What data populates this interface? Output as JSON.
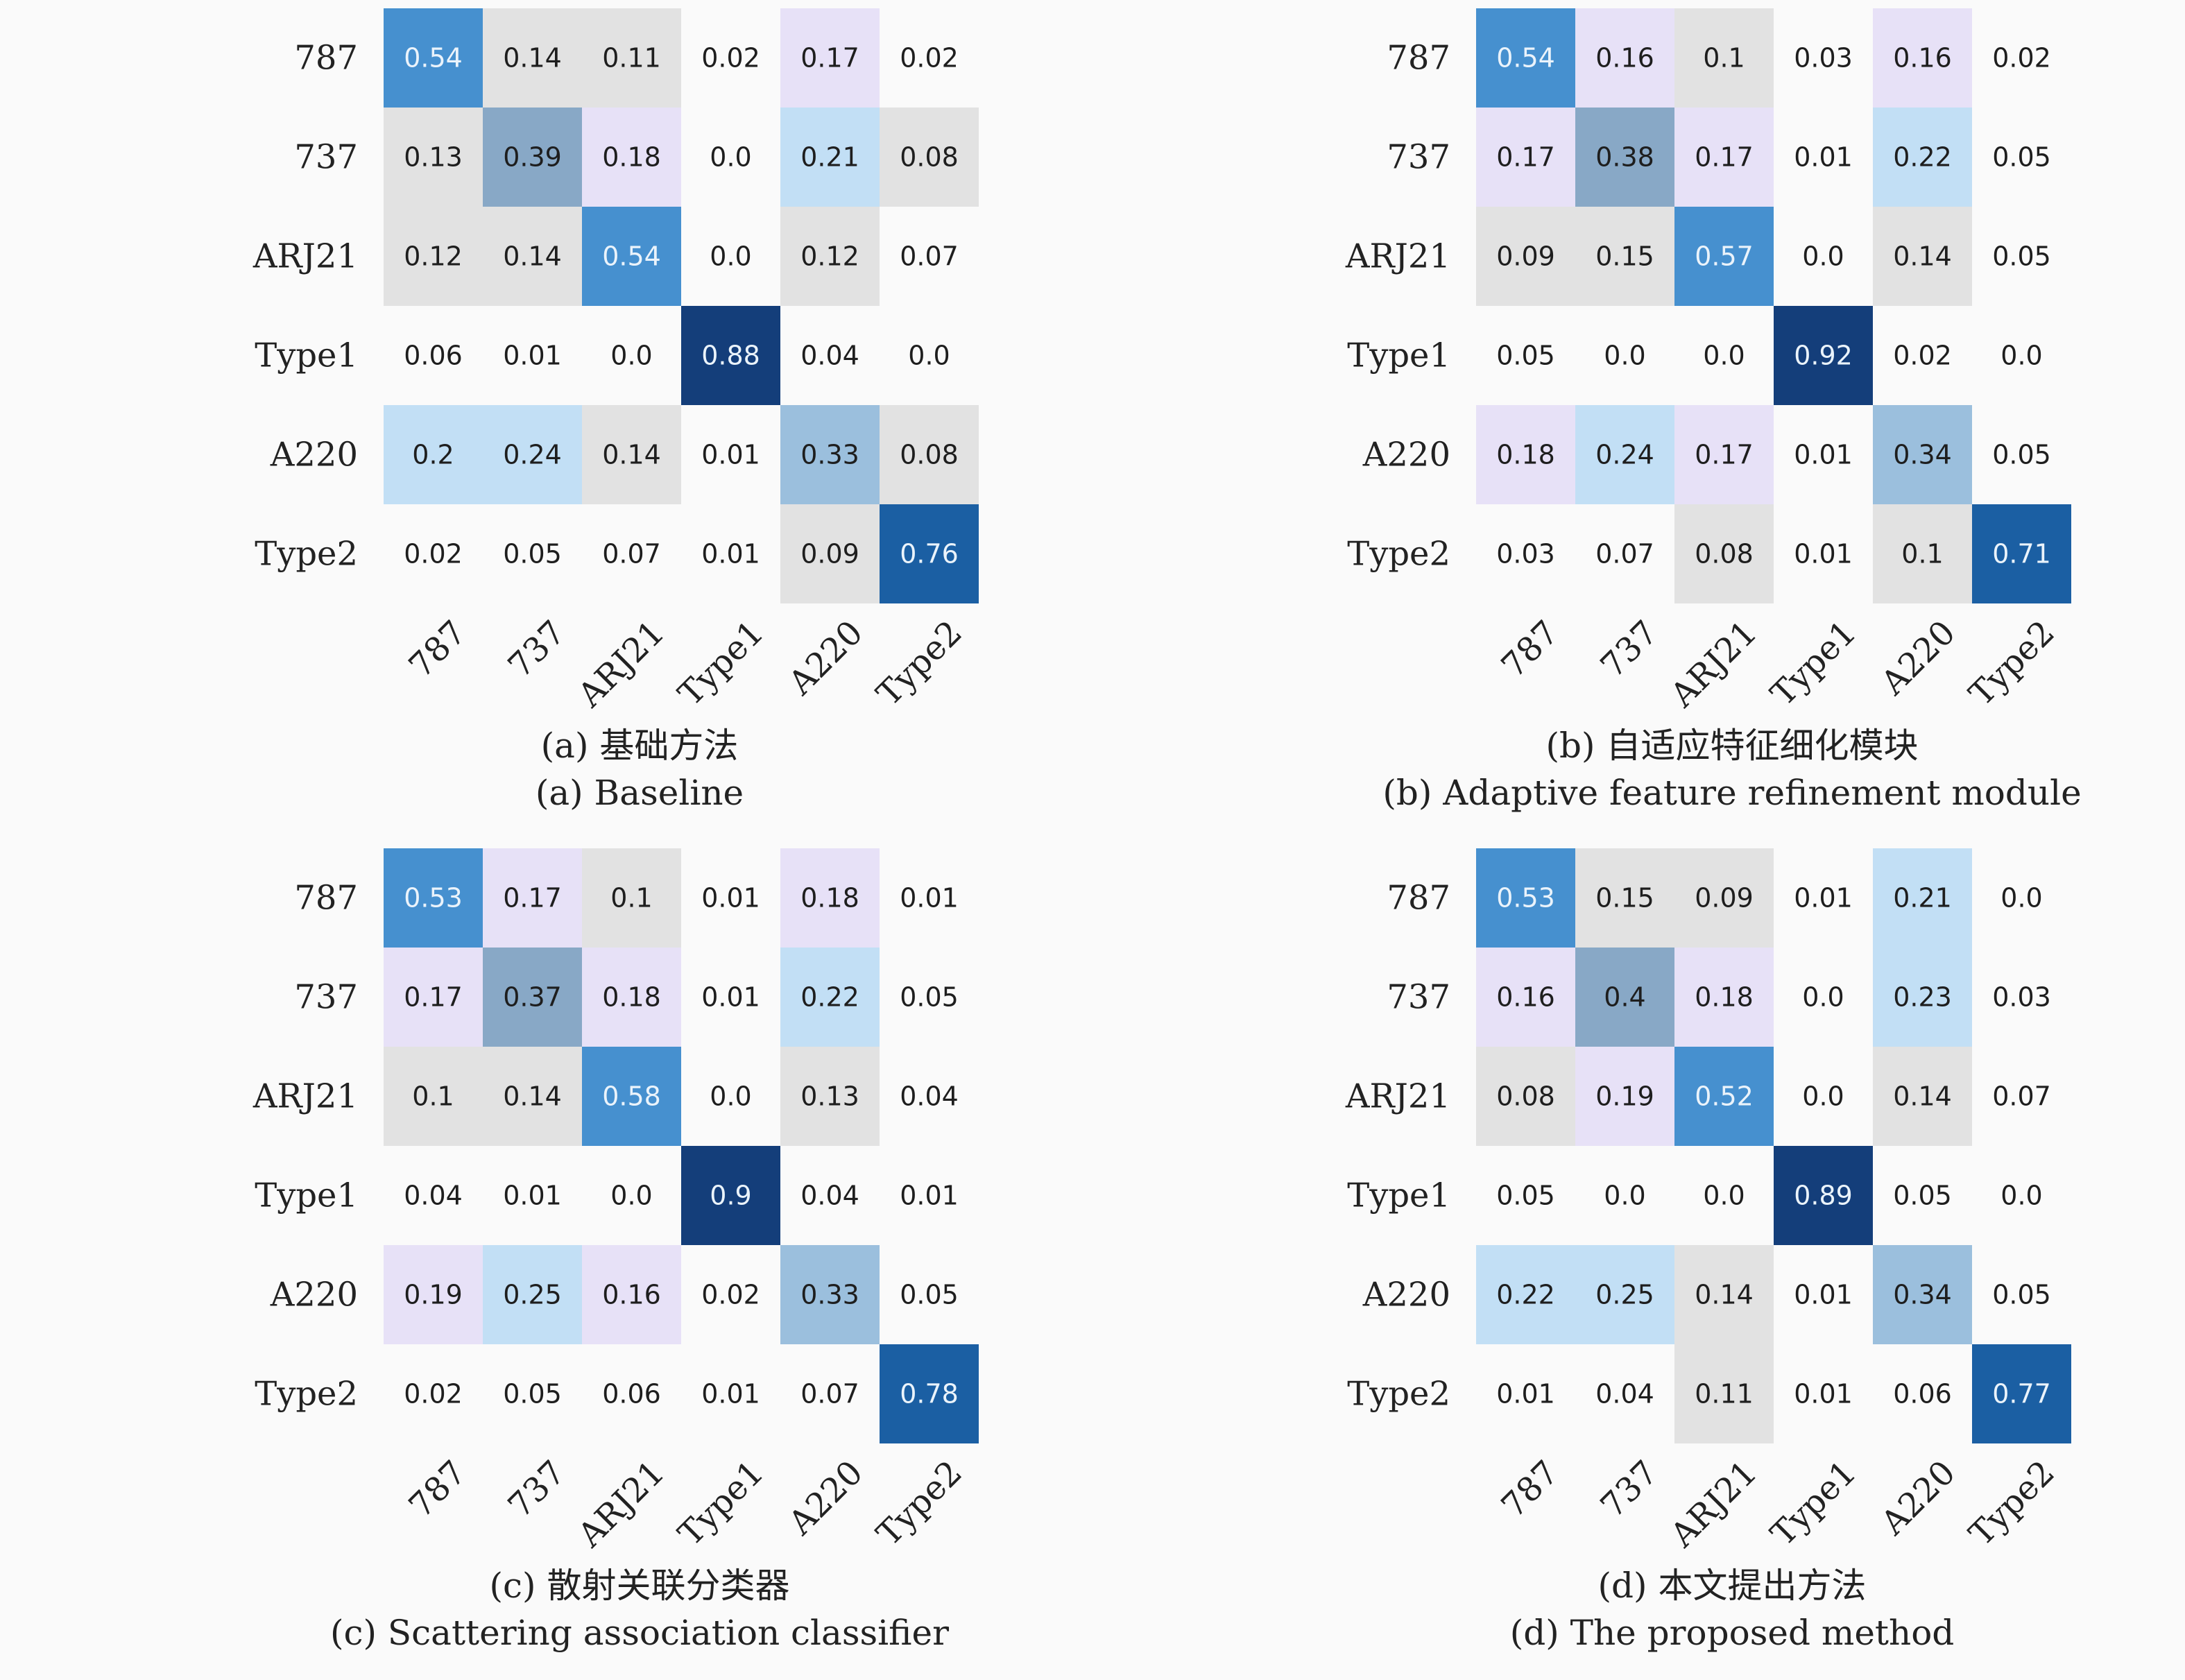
{
  "colors": {
    "scale": [
      "#e2e2e2",
      "#e7e1f7",
      "#c2dff5",
      "#9bbfdd",
      "#88a8c6",
      "#4690cf",
      "#1b5fa3",
      "#143e7a"
    ],
    "light_text": "#1e1e1e",
    "dark_text": "#eaf3fb"
  },
  "chart_data": [
    {
      "type": "heatmap",
      "caption_zh": "(a) 基础方法",
      "caption_en": "(a) Baseline",
      "row_labels": [
        "787",
        "737",
        "ARJ21",
        "Type1",
        "A220",
        "Type2"
      ],
      "col_labels": [
        "787",
        "737",
        "ARJ21",
        "Type1",
        "A220",
        "Type2"
      ],
      "values": [
        [
          "0.54",
          "0.14",
          "0.11",
          "0.02",
          "0.17",
          "0.02"
        ],
        [
          "0.13",
          "0.39",
          "0.18",
          "0.0",
          "0.21",
          "0.08"
        ],
        [
          "0.12",
          "0.14",
          "0.54",
          "0.0",
          "0.12",
          "0.07"
        ],
        [
          "0.06",
          "0.01",
          "0.0",
          "0.88",
          "0.04",
          "0.0"
        ],
        [
          "0.2",
          "0.24",
          "0.14",
          "0.01",
          "0.33",
          "0.08"
        ],
        [
          "0.02",
          "0.05",
          "0.07",
          "0.01",
          "0.09",
          "0.76"
        ]
      ]
    },
    {
      "type": "heatmap",
      "caption_zh": "(b) 自适应特征细化模块",
      "caption_en": "(b) Adaptive feature refinement module",
      "row_labels": [
        "787",
        "737",
        "ARJ21",
        "Type1",
        "A220",
        "Type2"
      ],
      "col_labels": [
        "787",
        "737",
        "ARJ21",
        "Type1",
        "A220",
        "Type2"
      ],
      "values": [
        [
          "0.54",
          "0.16",
          "0.1",
          "0.03",
          "0.16",
          "0.02"
        ],
        [
          "0.17",
          "0.38",
          "0.17",
          "0.01",
          "0.22",
          "0.05"
        ],
        [
          "0.09",
          "0.15",
          "0.57",
          "0.0",
          "0.14",
          "0.05"
        ],
        [
          "0.05",
          "0.0",
          "0.0",
          "0.92",
          "0.02",
          "0.0"
        ],
        [
          "0.18",
          "0.24",
          "0.17",
          "0.01",
          "0.34",
          "0.05"
        ],
        [
          "0.03",
          "0.07",
          "0.08",
          "0.01",
          "0.1",
          "0.71"
        ]
      ]
    },
    {
      "type": "heatmap",
      "caption_zh": "(c) 散射关联分类器",
      "caption_en": "(c) Scattering association classifier",
      "row_labels": [
        "787",
        "737",
        "ARJ21",
        "Type1",
        "A220",
        "Type2"
      ],
      "col_labels": [
        "787",
        "737",
        "ARJ21",
        "Type1",
        "A220",
        "Type2"
      ],
      "values": [
        [
          "0.53",
          "0.17",
          "0.1",
          "0.01",
          "0.18",
          "0.01"
        ],
        [
          "0.17",
          "0.37",
          "0.18",
          "0.01",
          "0.22",
          "0.05"
        ],
        [
          "0.1",
          "0.14",
          "0.58",
          "0.0",
          "0.13",
          "0.04"
        ],
        [
          "0.04",
          "0.01",
          "0.0",
          "0.9",
          "0.04",
          "0.01"
        ],
        [
          "0.19",
          "0.25",
          "0.16",
          "0.02",
          "0.33",
          "0.05"
        ],
        [
          "0.02",
          "0.05",
          "0.06",
          "0.01",
          "0.07",
          "0.78"
        ]
      ]
    },
    {
      "type": "heatmap",
      "caption_zh": "(d) 本文提出方法",
      "caption_en": "(d) The proposed method",
      "row_labels": [
        "787",
        "737",
        "ARJ21",
        "Type1",
        "A220",
        "Type2"
      ],
      "col_labels": [
        "787",
        "737",
        "ARJ21",
        "Type1",
        "A220",
        "Type2"
      ],
      "values": [
        [
          "0.53",
          "0.15",
          "0.09",
          "0.01",
          "0.21",
          "0.0"
        ],
        [
          "0.16",
          "0.4",
          "0.18",
          "0.0",
          "0.23",
          "0.03"
        ],
        [
          "0.08",
          "0.19",
          "0.52",
          "0.0",
          "0.14",
          "0.07"
        ],
        [
          "0.05",
          "0.0",
          "0.0",
          "0.89",
          "0.05",
          "0.0"
        ],
        [
          "0.22",
          "0.25",
          "0.14",
          "0.01",
          "0.34",
          "0.05"
        ],
        [
          "0.01",
          "0.04",
          "0.11",
          "0.01",
          "0.06",
          "0.77"
        ]
      ]
    }
  ]
}
